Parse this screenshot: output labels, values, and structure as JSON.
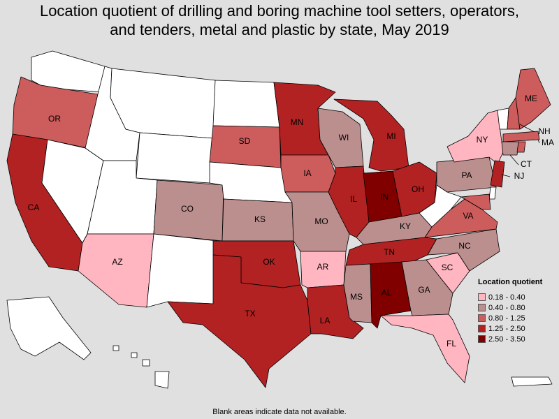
{
  "title_line1": "Location quotient of drilling and boring machine tool setters, operators,",
  "title_line2": "and tenders, metal and plastic by state, May 2019",
  "legend": {
    "title": "Location quotient",
    "items": [
      {
        "label": "0.18 - 0.40",
        "color": "#ffb6c1"
      },
      {
        "label": "0.40 - 0.80",
        "color": "#bc8f8f"
      },
      {
        "label": "0.80 - 1.25",
        "color": "#cd5c5c"
      },
      {
        "label": "1.25 - 2.50",
        "color": "#b22222"
      },
      {
        "label": "2.50 - 3.50",
        "color": "#800000"
      }
    ]
  },
  "no_data_color": "#ffffff",
  "footnote": "Blank areas indicate data not available.",
  "chart_data": {
    "type": "choropleth",
    "states": {
      "WA": null,
      "OR": "0.80 - 1.25",
      "CA": "1.25 - 2.50",
      "NV": null,
      "ID": null,
      "MT": null,
      "WY": null,
      "UT": null,
      "AZ": "0.18 - 0.40",
      "CO": "0.40 - 0.80",
      "NM": null,
      "ND": null,
      "SD": "0.80 - 1.25",
      "NE": null,
      "KS": "0.40 - 0.80",
      "OK": "1.25 - 2.50",
      "TX": "1.25 - 2.50",
      "MN": "1.25 - 2.50",
      "IA": "0.80 - 1.25",
      "MO": "0.40 - 0.80",
      "AR": "0.18 - 0.40",
      "LA": "1.25 - 2.50",
      "WI": "0.40 - 0.80",
      "IL": "1.25 - 2.50",
      "MI": "1.25 - 2.50",
      "IN": "2.50 - 3.50",
      "OH": "1.25 - 2.50",
      "KY": "0.40 - 0.80",
      "TN": "1.25 - 2.50",
      "MS": "0.40 - 0.80",
      "AL": "2.50 - 3.50",
      "GA": "0.40 - 0.80",
      "FL": "0.18 - 0.40",
      "SC": "0.18 - 0.40",
      "NC": "0.40 - 0.80",
      "VA": "0.80 - 1.25",
      "WV": null,
      "PA": "0.40 - 0.80",
      "NY": "0.18 - 0.40",
      "VT": null,
      "NH": "0.80 - 1.25",
      "ME": "0.80 - 1.25",
      "MA": "0.80 - 1.25",
      "CT": "0.40 - 0.80",
      "RI": "0.80 - 1.25",
      "NJ": "1.25 - 2.50",
      "DE": null,
      "MD": "0.80 - 1.25",
      "AK": null,
      "HI": null,
      "PR": null
    }
  }
}
